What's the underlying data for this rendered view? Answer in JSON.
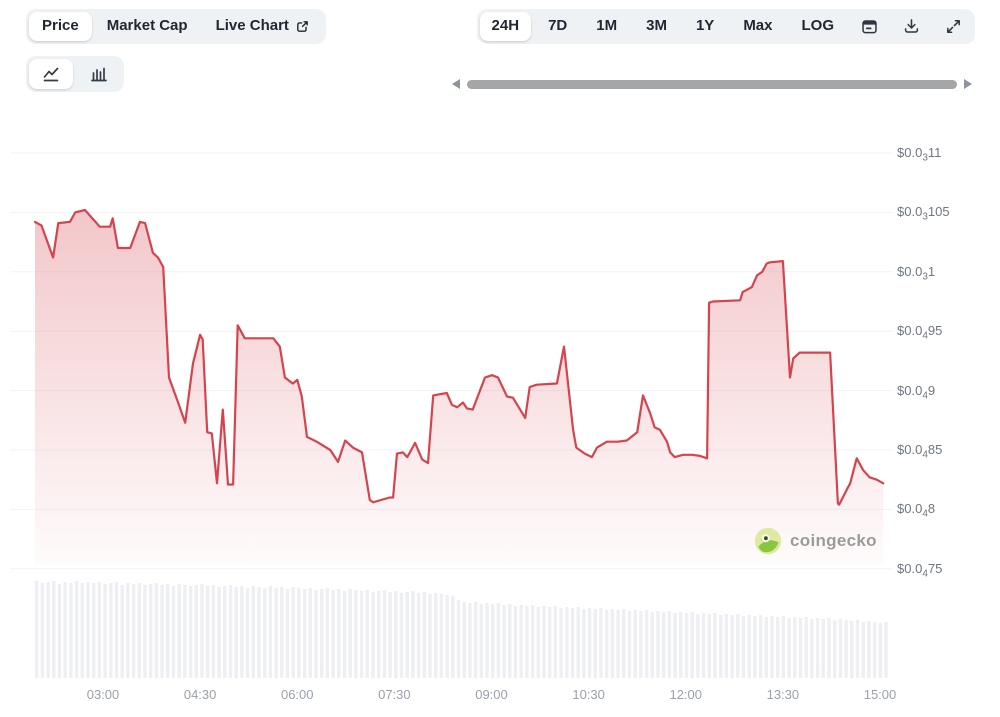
{
  "tabs": {
    "items": [
      {
        "label": "Price",
        "active": true
      },
      {
        "label": "Market Cap",
        "active": false
      },
      {
        "label": "Live Chart",
        "active": false,
        "icon": "external-link-icon"
      }
    ]
  },
  "chart_type_toggle": {
    "options": [
      {
        "name": "line-chart-icon",
        "active": true
      },
      {
        "name": "candlestick-chart-icon",
        "active": false
      }
    ]
  },
  "toolbar": {
    "ranges": [
      {
        "label": "24H",
        "active": true
      },
      {
        "label": "7D",
        "active": false
      },
      {
        "label": "1M",
        "active": false
      },
      {
        "label": "3M",
        "active": false
      },
      {
        "label": "1Y",
        "active": false
      },
      {
        "label": "Max",
        "active": false
      },
      {
        "label": "LOG",
        "active": false
      }
    ],
    "icons": [
      "calendar-icon",
      "download-icon",
      "expand-icon"
    ]
  },
  "scrollbar": {
    "icons": [
      "scroll-left-arrow",
      "scroll-right-arrow"
    ],
    "thumb_extent": "full"
  },
  "watermark": {
    "text": "coingecko",
    "icon": "coingecko-gecko-logo"
  },
  "colors": {
    "line": "#d5444e",
    "fill_top": "rgba(213,68,78,0.30)",
    "fill_bottom": "rgba(213,68,78,0.02)",
    "grid": "#f2f3f6",
    "volume_bar": "#edeff3",
    "control_bg": "#eff2f5",
    "active_pill_bg": "#ffffff",
    "text_dark": "#1f2730",
    "y_axis_text": "#6e7681",
    "x_axis_text": "#9aa1ab",
    "scrollbar_thumb": "#a5a6a8",
    "watermark_text": "#9b9b9b"
  },
  "chart_data": {
    "type": "area",
    "legend": false,
    "grid": true,
    "x_axis": {
      "labels": [
        "03:00",
        "04:30",
        "06:00",
        "07:30",
        "09:00",
        "10:30",
        "12:00",
        "13:30",
        "15:00"
      ],
      "hours": [
        3,
        4.5,
        6,
        7.5,
        9,
        10.5,
        12,
        13.5,
        15
      ],
      "range_hours": [
        1.95,
        15.05
      ]
    },
    "y_axis": {
      "side": "right",
      "unit": "USD",
      "range": [
        7.5e-05,
        0.00011
      ],
      "ticks": [
        {
          "value": 0.00011,
          "pre": "$0.0",
          "sub": "3",
          "post": "11"
        },
        {
          "value": 0.000105,
          "pre": "$0.0",
          "sub": "3",
          "post": "105"
        },
        {
          "value": 0.0001,
          "pre": "$0.0",
          "sub": "3",
          "post": "1"
        },
        {
          "value": 9.5e-05,
          "pre": "$0.0",
          "sub": "4",
          "post": "95"
        },
        {
          "value": 9e-05,
          "pre": "$0.0",
          "sub": "4",
          "post": "9"
        },
        {
          "value": 8.5e-05,
          "pre": "$0.0",
          "sub": "4",
          "post": "85"
        },
        {
          "value": 8e-05,
          "pre": "$0.0",
          "sub": "4",
          "post": "8"
        },
        {
          "value": 7.5e-05,
          "pre": "$0.0",
          "sub": "4",
          "post": "75"
        }
      ]
    },
    "series": [
      {
        "name": "price",
        "point_format": "[hour_of_day, price_in_micro_USD]",
        "points": [
          [
            1.95,
            104.2
          ],
          [
            2.05,
            103.9
          ],
          [
            2.23,
            101.2
          ],
          [
            2.31,
            104.1
          ],
          [
            2.49,
            104.2
          ],
          [
            2.57,
            105.0
          ],
          [
            2.72,
            105.2
          ],
          [
            2.95,
            103.8
          ],
          [
            3.11,
            103.8
          ],
          [
            3.15,
            104.5
          ],
          [
            3.23,
            102.0
          ],
          [
            3.42,
            102.0
          ],
          [
            3.57,
            104.2
          ],
          [
            3.65,
            104.1
          ],
          [
            3.77,
            101.6
          ],
          [
            3.85,
            101.2
          ],
          [
            3.93,
            100.4
          ],
          [
            4.02,
            91.1
          ],
          [
            4.16,
            89.0
          ],
          [
            4.27,
            87.3
          ],
          [
            4.39,
            92.3
          ],
          [
            4.5,
            94.7
          ],
          [
            4.54,
            94.3
          ],
          [
            4.61,
            86.5
          ],
          [
            4.68,
            86.4
          ],
          [
            4.76,
            82.2
          ],
          [
            4.85,
            88.4
          ],
          [
            4.93,
            82.1
          ],
          [
            5.01,
            82.1
          ],
          [
            5.08,
            95.5
          ],
          [
            5.19,
            94.4
          ],
          [
            5.63,
            94.4
          ],
          [
            5.73,
            93.7
          ],
          [
            5.81,
            91.1
          ],
          [
            5.93,
            90.6
          ],
          [
            6.0,
            90.9
          ],
          [
            6.07,
            89.5
          ],
          [
            6.15,
            86.1
          ],
          [
            6.3,
            85.7
          ],
          [
            6.51,
            85.0
          ],
          [
            6.63,
            84.0
          ],
          [
            6.74,
            85.8
          ],
          [
            6.86,
            85.2
          ],
          [
            7.0,
            84.8
          ],
          [
            7.12,
            80.8
          ],
          [
            7.17,
            80.6
          ],
          [
            7.43,
            81.0
          ],
          [
            7.48,
            81.0
          ],
          [
            7.54,
            84.7
          ],
          [
            7.63,
            84.8
          ],
          [
            7.7,
            84.4
          ],
          [
            7.82,
            85.6
          ],
          [
            7.93,
            84.2
          ],
          [
            8.02,
            83.9
          ],
          [
            8.1,
            89.6
          ],
          [
            8.31,
            89.8
          ],
          [
            8.39,
            88.8
          ],
          [
            8.47,
            88.6
          ],
          [
            8.56,
            89.0
          ],
          [
            8.62,
            88.5
          ],
          [
            8.71,
            88.4
          ],
          [
            8.9,
            91.1
          ],
          [
            9.01,
            91.3
          ],
          [
            9.1,
            91.1
          ],
          [
            9.24,
            89.5
          ],
          [
            9.33,
            89.4
          ],
          [
            9.52,
            87.7
          ],
          [
            9.59,
            90.3
          ],
          [
            9.7,
            90.5
          ],
          [
            10.01,
            90.6
          ],
          [
            10.12,
            93.7
          ],
          [
            10.26,
            86.7
          ],
          [
            10.31,
            85.2
          ],
          [
            10.44,
            84.7
          ],
          [
            10.55,
            84.4
          ],
          [
            10.63,
            85.2
          ],
          [
            10.78,
            85.7
          ],
          [
            10.95,
            85.7
          ],
          [
            11.09,
            85.8
          ],
          [
            11.25,
            86.5
          ],
          [
            11.34,
            89.6
          ],
          [
            11.45,
            88.1
          ],
          [
            11.52,
            86.9
          ],
          [
            11.6,
            86.7
          ],
          [
            11.71,
            85.7
          ],
          [
            11.76,
            84.8
          ],
          [
            11.83,
            84.4
          ],
          [
            11.96,
            84.6
          ],
          [
            12.1,
            84.6
          ],
          [
            12.22,
            84.5
          ],
          [
            12.33,
            84.3
          ],
          [
            12.36,
            97.4
          ],
          [
            12.42,
            97.5
          ],
          [
            12.84,
            97.6
          ],
          [
            12.88,
            98.3
          ],
          [
            13.02,
            98.7
          ],
          [
            13.1,
            99.7
          ],
          [
            13.18,
            100.0
          ],
          [
            13.25,
            100.7
          ],
          [
            13.3,
            100.8
          ],
          [
            13.5,
            100.9
          ],
          [
            13.61,
            91.1
          ],
          [
            13.66,
            92.7
          ],
          [
            13.76,
            93.2
          ],
          [
            14.23,
            93.2
          ],
          [
            14.35,
            80.5
          ],
          [
            14.37,
            80.4
          ],
          [
            14.49,
            81.7
          ],
          [
            14.54,
            82.2
          ],
          [
            14.64,
            84.3
          ],
          [
            14.74,
            83.3
          ],
          [
            14.84,
            82.7
          ],
          [
            14.95,
            82.5
          ],
          [
            15.05,
            82.2
          ]
        ]
      }
    ],
    "volume_bars": {
      "relative_heights": [
        0.97,
        0.95,
        0.96,
        0.97,
        0.94,
        0.96,
        0.95,
        0.97,
        0.95,
        0.96,
        0.95,
        0.96,
        0.94,
        0.95,
        0.96,
        0.93,
        0.95,
        0.94,
        0.95,
        0.93,
        0.94,
        0.95,
        0.93,
        0.94,
        0.92,
        0.94,
        0.93,
        0.92,
        0.93,
        0.94,
        0.92,
        0.93,
        0.91,
        0.92,
        0.93,
        0.91,
        0.92,
        0.9,
        0.92,
        0.91,
        0.9,
        0.92,
        0.9,
        0.91,
        0.89,
        0.91,
        0.9,
        0.89,
        0.9,
        0.88,
        0.89,
        0.9,
        0.88,
        0.89,
        0.87,
        0.89,
        0.88,
        0.87,
        0.88,
        0.86,
        0.87,
        0.88,
        0.86,
        0.87,
        0.85,
        0.86,
        0.87,
        0.85,
        0.86,
        0.84,
        0.85,
        0.84,
        0.83,
        0.82,
        0.78,
        0.76,
        0.75,
        0.76,
        0.74,
        0.75,
        0.74,
        0.75,
        0.73,
        0.74,
        0.72,
        0.73,
        0.72,
        0.73,
        0.71,
        0.72,
        0.71,
        0.72,
        0.7,
        0.71,
        0.7,
        0.71,
        0.69,
        0.7,
        0.69,
        0.7,
        0.68,
        0.69,
        0.68,
        0.69,
        0.67,
        0.68,
        0.67,
        0.68,
        0.66,
        0.67,
        0.66,
        0.67,
        0.65,
        0.66,
        0.65,
        0.66,
        0.64,
        0.65,
        0.64,
        0.65,
        0.63,
        0.64,
        0.63,
        0.64,
        0.62,
        0.63,
        0.62,
        0.63,
        0.61,
        0.62,
        0.61,
        0.62,
        0.6,
        0.61,
        0.6,
        0.61,
        0.59,
        0.6,
        0.59,
        0.6,
        0.58,
        0.59,
        0.58,
        0.57,
        0.58,
        0.56,
        0.57,
        0.56,
        0.55,
        0.56
      ]
    }
  }
}
